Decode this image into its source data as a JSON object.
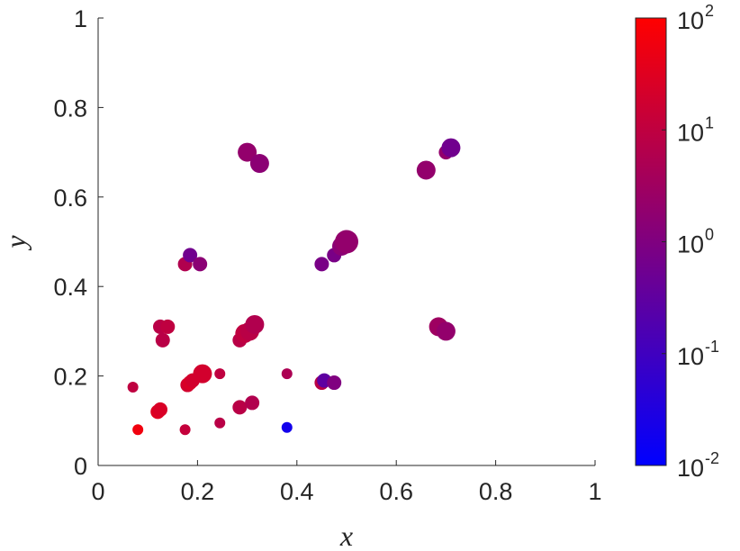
{
  "chart_data": {
    "type": "scatter",
    "xlabel": "x",
    "ylabel": "y",
    "xlim": [
      0,
      1
    ],
    "ylim": [
      0,
      1
    ],
    "xticks": [
      "0",
      "0.2",
      "0.4",
      "0.6",
      "0.8",
      "1"
    ],
    "yticks": [
      "0",
      "0.2",
      "0.4",
      "0.6",
      "0.8",
      "1"
    ],
    "grid": false,
    "colorbar": {
      "scale": "log",
      "range": [
        0.01,
        100
      ],
      "colors": [
        "#0000ff",
        "#ff0000"
      ],
      "ticks": [
        {
          "base": "10",
          "exp": "-2",
          "value": 0.01
        },
        {
          "base": "10",
          "exp": "-1",
          "value": 0.1
        },
        {
          "base": "10",
          "exp": "0",
          "value": 1
        },
        {
          "base": "10",
          "exp": "1",
          "value": 10
        },
        {
          "base": "10",
          "exp": "2",
          "value": 100
        }
      ]
    },
    "points": [
      {
        "x": 0.08,
        "y": 0.08,
        "c": 60,
        "s": 3
      },
      {
        "x": 0.07,
        "y": 0.175,
        "c": 10,
        "s": 3
      },
      {
        "x": 0.12,
        "y": 0.12,
        "c": 30,
        "s": 4
      },
      {
        "x": 0.125,
        "y": 0.125,
        "c": 25,
        "s": 4
      },
      {
        "x": 0.175,
        "y": 0.08,
        "c": 12,
        "s": 3
      },
      {
        "x": 0.245,
        "y": 0.095,
        "c": 8,
        "s": 3
      },
      {
        "x": 0.125,
        "y": 0.31,
        "c": 8,
        "s": 4
      },
      {
        "x": 0.14,
        "y": 0.31,
        "c": 10,
        "s": 4
      },
      {
        "x": 0.13,
        "y": 0.28,
        "c": 8,
        "s": 4
      },
      {
        "x": 0.18,
        "y": 0.18,
        "c": 20,
        "s": 4
      },
      {
        "x": 0.185,
        "y": 0.185,
        "c": 25,
        "s": 4
      },
      {
        "x": 0.19,
        "y": 0.19,
        "c": 20,
        "s": 4
      },
      {
        "x": 0.21,
        "y": 0.205,
        "c": 20,
        "s": 5
      },
      {
        "x": 0.245,
        "y": 0.205,
        "c": 10,
        "s": 3
      },
      {
        "x": 0.285,
        "y": 0.13,
        "c": 8,
        "s": 4
      },
      {
        "x": 0.31,
        "y": 0.14,
        "c": 6,
        "s": 4
      },
      {
        "x": 0.285,
        "y": 0.28,
        "c": 8,
        "s": 4
      },
      {
        "x": 0.295,
        "y": 0.295,
        "c": 10,
        "s": 5
      },
      {
        "x": 0.305,
        "y": 0.3,
        "c": 8,
        "s": 5
      },
      {
        "x": 0.315,
        "y": 0.315,
        "c": 6,
        "s": 5
      },
      {
        "x": 0.38,
        "y": 0.085,
        "c": 0.02,
        "s": 3
      },
      {
        "x": 0.38,
        "y": 0.205,
        "c": 5,
        "s": 3
      },
      {
        "x": 0.45,
        "y": 0.185,
        "c": 8,
        "s": 4
      },
      {
        "x": 0.455,
        "y": 0.19,
        "c": 0.3,
        "s": 4
      },
      {
        "x": 0.475,
        "y": 0.185,
        "c": 1,
        "s": 4
      },
      {
        "x": 0.175,
        "y": 0.45,
        "c": 6,
        "s": 4
      },
      {
        "x": 0.185,
        "y": 0.47,
        "c": 0.6,
        "s": 4
      },
      {
        "x": 0.205,
        "y": 0.45,
        "c": 1.5,
        "s": 4
      },
      {
        "x": 0.3,
        "y": 0.7,
        "c": 2,
        "s": 5
      },
      {
        "x": 0.325,
        "y": 0.675,
        "c": 1.5,
        "s": 5
      },
      {
        "x": 0.45,
        "y": 0.45,
        "c": 0.8,
        "s": 4
      },
      {
        "x": 0.475,
        "y": 0.47,
        "c": 0.8,
        "s": 4
      },
      {
        "x": 0.49,
        "y": 0.49,
        "c": 1.5,
        "s": 5
      },
      {
        "x": 0.5,
        "y": 0.5,
        "c": 2,
        "s": 6
      },
      {
        "x": 0.66,
        "y": 0.66,
        "c": 2,
        "s": 5
      },
      {
        "x": 0.685,
        "y": 0.31,
        "c": 3,
        "s": 5
      },
      {
        "x": 0.7,
        "y": 0.3,
        "c": 2,
        "s": 5
      },
      {
        "x": 0.7,
        "y": 0.7,
        "c": 2,
        "s": 4
      },
      {
        "x": 0.71,
        "y": 0.71,
        "c": 0.6,
        "s": 5
      }
    ]
  }
}
